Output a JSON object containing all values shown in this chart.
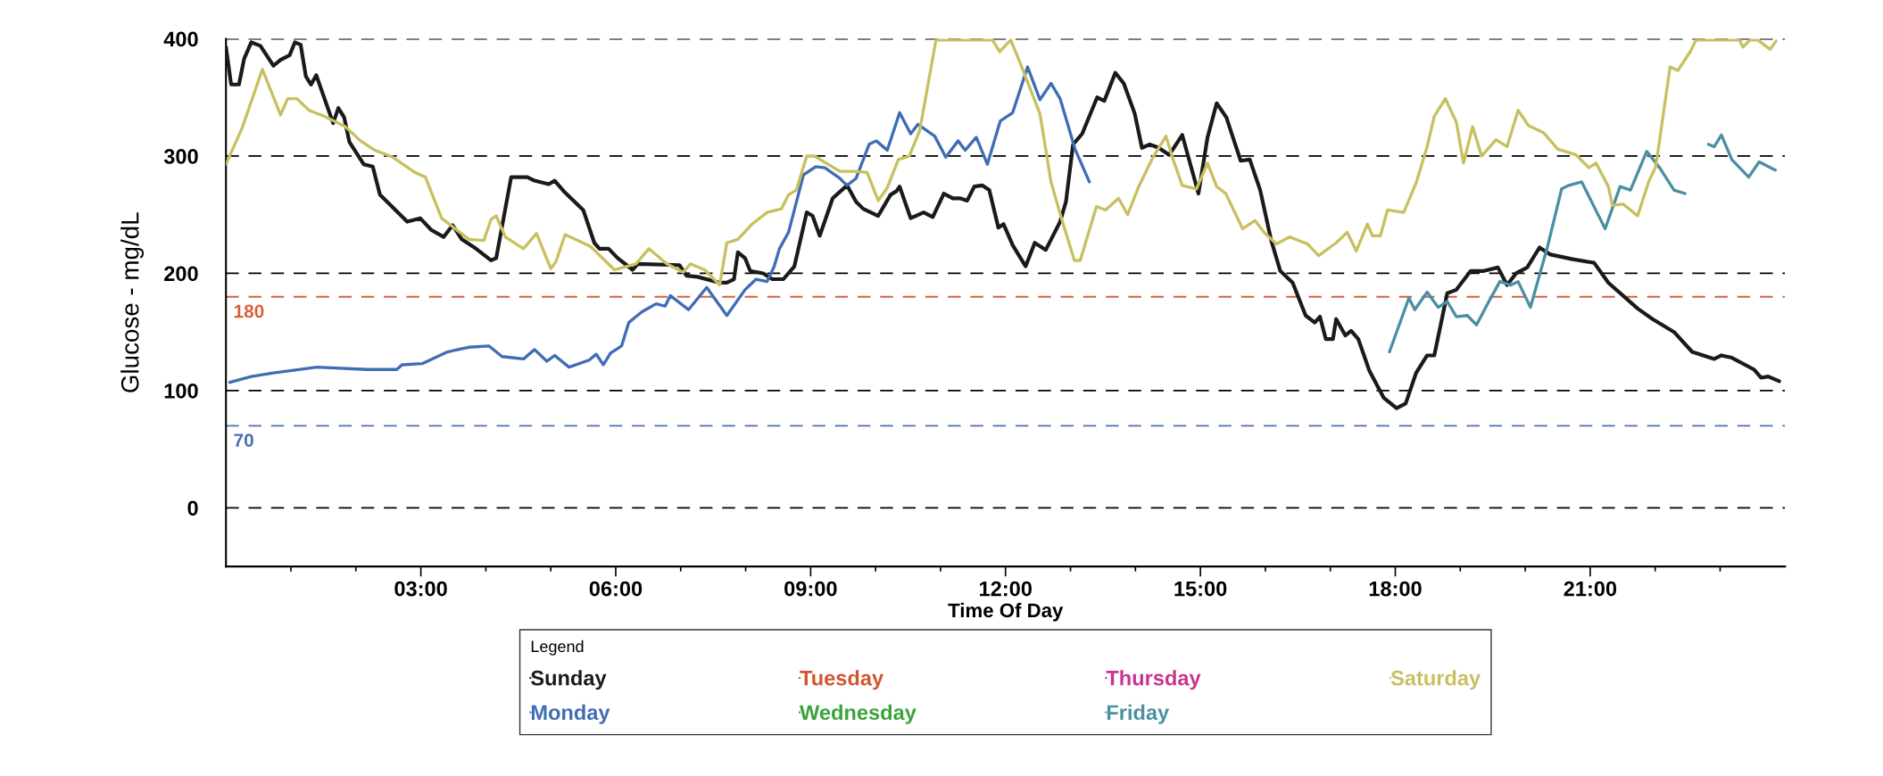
{
  "chart_data": {
    "type": "line",
    "xlabel": "Time Of Day",
    "ylabel": "Glucose - mg/dL",
    "legend_title": "Legend",
    "xlim": [
      0,
      24
    ],
    "ylim": [
      -50,
      400
    ],
    "yticks": [
      0,
      100,
      200,
      300,
      400
    ],
    "xticks": [
      {
        "value": 1,
        "label": null
      },
      {
        "value": 2,
        "label": null
      },
      {
        "value": 3,
        "label": "03:00"
      },
      {
        "value": 4,
        "label": null
      },
      {
        "value": 5,
        "label": null
      },
      {
        "value": 6,
        "label": "06:00"
      },
      {
        "value": 7,
        "label": null
      },
      {
        "value": 8,
        "label": null
      },
      {
        "value": 9,
        "label": "09:00"
      },
      {
        "value": 10,
        "label": null
      },
      {
        "value": 11,
        "label": null
      },
      {
        "value": 12,
        "label": "12:00"
      },
      {
        "value": 13,
        "label": null
      },
      {
        "value": 14,
        "label": null
      },
      {
        "value": 15,
        "label": "15:00"
      },
      {
        "value": 16,
        "label": null
      },
      {
        "value": 17,
        "label": null
      },
      {
        "value": 18,
        "label": "18:00"
      },
      {
        "value": 19,
        "label": null
      },
      {
        "value": 20,
        "label": null
      },
      {
        "value": 21,
        "label": "21:00"
      },
      {
        "value": 22,
        "label": null
      },
      {
        "value": 23,
        "label": null
      }
    ],
    "grid": "y",
    "line_style": "solid",
    "marker": "none",
    "legend": "bottom",
    "ref_lines": [
      {
        "axis": "y",
        "value": 180,
        "label": "180",
        "color": "#d9603b",
        "line_style": "dashed"
      },
      {
        "axis": "y",
        "value": 70,
        "label": "70",
        "color": "#4a6fb5",
        "line_style": "dashed"
      }
    ],
    "series": [
      {
        "name": "Sunday",
        "color": "#1a1a1a",
        "x": [
          0,
          0.08,
          0.2,
          0.28,
          0.39,
          0.53,
          0.73,
          0.84,
          0.98,
          1.06,
          1.15,
          1.23,
          1.31,
          1.39,
          1.65,
          1.73,
          1.82,
          1.9,
          2.12,
          2.26,
          2.37,
          2.79,
          2.99,
          3.16,
          3.35,
          3.49,
          3.63,
          3.85,
          4.08,
          4.16,
          4.39,
          4.64,
          4.75,
          4.97,
          5.06,
          5.2,
          5.5,
          5.67,
          5.75,
          5.89,
          6.03,
          6.26,
          6.34,
          6.98,
          7.09,
          7.26,
          7.6,
          7.71,
          7.82,
          7.88,
          7.99,
          8.07,
          8.27,
          8.41,
          8.58,
          8.75,
          8.94,
          9.03,
          9.14,
          9.34,
          9.56,
          9.7,
          9.81,
          10.04,
          10.23,
          10.32,
          10.37,
          10.54,
          10.74,
          10.88,
          11.05,
          11.19,
          11.3,
          11.41,
          11.52,
          11.64,
          11.75,
          11.89,
          11.97,
          12.11,
          12.31,
          12.45,
          12.62,
          12.84,
          12.93,
          13.04,
          13.18,
          13.41,
          13.52,
          13.69,
          13.82,
          13.99,
          14.1,
          14.22,
          14.36,
          14.52,
          14.72,
          14.97,
          15.11,
          15.25,
          15.4,
          15.5,
          15.62,
          15.76,
          15.92,
          16.09,
          16.23,
          16.42,
          16.62,
          16.76,
          16.84,
          16.93,
          17.04,
          17.09,
          17.23,
          17.32,
          17.43,
          17.6,
          17.82,
          18.02,
          18.16,
          18.32,
          18.49,
          18.6,
          18.8,
          18.94,
          19.16,
          19.36,
          19.58,
          19.72,
          19.86,
          20.03,
          20.22,
          20.39,
          20.73,
          21.06,
          21.28,
          21.73,
          21.96,
          22.29,
          22.57,
          22.91,
          23.02,
          23.18,
          23.52,
          23.63,
          23.74,
          23.91
        ],
        "values": [
          393,
          361,
          361,
          383,
          397,
          394,
          377,
          382,
          386,
          397,
          395,
          368,
          361,
          369,
          328,
          341,
          333,
          312,
          293,
          291,
          267,
          244,
          247,
          237,
          231,
          241,
          229,
          221,
          211,
          213,
          282,
          282,
          279,
          276,
          279,
          270,
          254,
          226,
          221,
          221,
          213,
          203,
          208,
          207,
          198,
          197,
          192,
          192,
          195,
          218,
          213,
          202,
          200,
          195,
          195,
          206,
          252,
          249,
          232,
          264,
          275,
          261,
          255,
          249,
          267,
          270,
          274,
          247,
          252,
          248,
          268,
          264,
          264,
          262,
          274,
          275,
          271,
          239,
          242,
          224,
          206,
          226,
          220,
          244,
          261,
          310,
          319,
          350,
          347,
          371,
          362,
          336,
          307,
          310,
          307,
          301,
          318,
          268,
          316,
          345,
          333,
          316,
          296,
          297,
          271,
          228,
          202,
          192,
          164,
          158,
          163,
          144,
          144,
          161,
          147,
          151,
          144,
          117,
          94,
          85,
          89,
          115,
          130,
          130,
          183,
          186,
          202,
          202,
          205,
          190,
          200,
          205,
          222,
          216,
          212,
          209,
          192,
          170,
          161,
          150,
          133,
          127,
          130,
          128,
          118,
          111,
          112,
          108
        ]
      },
      {
        "name": "Monday",
        "color": "#3f6db3",
        "x": [
          0.06,
          0.39,
          0.73,
          1.4,
          2.18,
          2.63,
          2.71,
          3.02,
          3.41,
          3.74,
          4.05,
          4.25,
          4.58,
          4.75,
          4.94,
          5.06,
          5.28,
          5.59,
          5.7,
          5.81,
          5.92,
          6.09,
          6.2,
          6.4,
          6.62,
          6.76,
          6.84,
          7.12,
          7.4,
          7.71,
          7.99,
          8.16,
          8.33,
          8.44,
          8.52,
          8.66,
          8.89,
          9.08,
          9.22,
          9.45,
          9.56,
          9.7,
          9.9,
          10.01,
          10.18,
          10.37,
          10.54,
          10.65,
          10.91,
          11.08,
          11.27,
          11.38,
          11.55,
          11.72,
          11.92,
          12.11,
          12.34,
          12.53,
          12.7,
          12.84,
          13.07,
          13.29
        ],
        "values": [
          107,
          112,
          115,
          120,
          118,
          118,
          122,
          123,
          133,
          137,
          138,
          129,
          127,
          135,
          125,
          130,
          120,
          126,
          131,
          122,
          132,
          138,
          158,
          167,
          174,
          172,
          181,
          169,
          188,
          164,
          186,
          195,
          193,
          206,
          221,
          235,
          284,
          291,
          290,
          281,
          275,
          281,
          310,
          313,
          305,
          337,
          319,
          327,
          317,
          299,
          313,
          305,
          316,
          293,
          330,
          337,
          376,
          348,
          362,
          349,
          306,
          278
        ]
      },
      {
        "name": "Tuesday",
        "color": "#d2552f"
      },
      {
        "name": "Wednesday",
        "color": "#3aa33a"
      },
      {
        "name": "Thursday",
        "color": "#c8348f"
      },
      {
        "name": "Friday",
        "color": "#4a8fa3",
        "x": [
          17.91,
          18.21,
          18.3,
          18.49,
          18.66,
          18.8,
          18.94,
          19.11,
          19.25,
          19.44,
          19.61,
          19.78,
          19.89,
          20.08,
          20.34,
          20.56,
          20.67,
          20.87,
          21.04,
          21.23,
          21.46,
          21.62,
          21.87,
          22.07,
          22.29,
          22.46,
          22.65,
          22.82,
          22.91,
          23.02,
          23.18,
          23.44,
          23.6,
          23.85
        ],
        "values": [
          133,
          179,
          169,
          184,
          171,
          176,
          163,
          164,
          156,
          176,
          193,
          190,
          193,
          171,
          222,
          272,
          275,
          278,
          259,
          238,
          274,
          271,
          304,
          290,
          271,
          268,
          null,
          310,
          308,
          318,
          297,
          282,
          295,
          288
        ]
      },
      {
        "name": "Saturday",
        "color": "#c8c060",
        "x": [
          0,
          0.25,
          0.56,
          0.84,
          0.95,
          1.09,
          1.28,
          1.51,
          1.84,
          2.07,
          2.29,
          2.57,
          2.91,
          3.07,
          3.32,
          3.74,
          3.97,
          4.08,
          4.16,
          4.3,
          4.58,
          4.78,
          5.0,
          5.08,
          5.22,
          5.61,
          5.98,
          6.31,
          6.51,
          6.79,
          7.04,
          7.15,
          7.37,
          7.6,
          7.71,
          7.88,
          8.1,
          8.33,
          8.55,
          8.66,
          8.78,
          8.94,
          9.06,
          9.45,
          9.67,
          9.87,
          10.04,
          10.18,
          10.35,
          10.52,
          10.68,
          10.93,
          11.8,
          11.91,
          12.08,
          12.25,
          12.53,
          12.7,
          12.86,
          13.06,
          13.15,
          13.4,
          13.54,
          13.74,
          13.88,
          14.05,
          14.27,
          14.47,
          14.58,
          14.72,
          14.94,
          15.11,
          15.25,
          15.39,
          15.65,
          15.84,
          15.98,
          16.17,
          16.37,
          16.65,
          16.82,
          17.09,
          17.26,
          17.4,
          17.57,
          17.65,
          17.77,
          17.88,
          18.13,
          18.32,
          18.49,
          18.6,
          18.77,
          18.94,
          19.05,
          19.19,
          19.33,
          19.55,
          19.72,
          19.89,
          20.05,
          20.28,
          20.5,
          20.78,
          20.98,
          21.09,
          21.28,
          21.34,
          21.51,
          21.73,
          21.9,
          22.01,
          22.23,
          22.35,
          22.54,
          22.63,
          23.3,
          23.35,
          23.46,
          23.58,
          23.77,
          23.86
        ],
        "values": [
          293,
          324,
          374,
          335,
          349,
          349,
          339,
          334,
          325,
          313,
          305,
          299,
          286,
          282,
          247,
          229,
          228,
          246,
          249,
          231,
          221,
          234,
          204,
          210,
          233,
          223,
          203,
          208,
          221,
          208,
          201,
          208,
          203,
          190,
          226,
          229,
          242,
          252,
          255,
          267,
          271,
          300,
          300,
          287,
          287,
          286,
          262,
          273,
          297,
          300,
          322,
          399,
          399,
          389,
          399,
          376,
          336,
          278,
          247,
          211,
          211,
          257,
          254,
          264,
          250,
          274,
          299,
          317,
          297,
          275,
          272,
          294,
          274,
          268,
          238,
          245,
          235,
          225,
          231,
          225,
          215,
          226,
          235,
          219,
          242,
          232,
          232,
          254,
          252,
          277,
          308,
          334,
          349,
          329,
          294,
          325,
          300,
          314,
          308,
          339,
          326,
          320,
          306,
          301,
          290,
          294,
          274,
          258,
          259,
          249,
          278,
          291,
          376,
          373,
          389,
          399,
          399,
          393,
          399,
          399,
          391,
          398
        ]
      }
    ]
  }
}
